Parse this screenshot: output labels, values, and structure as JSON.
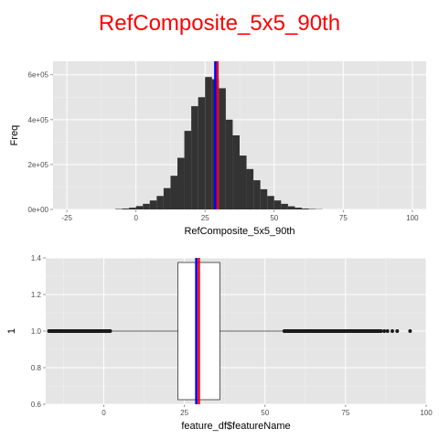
{
  "title": "RefComposite_5x5_90th",
  "colors": {
    "title": "#ff0000",
    "panel_bg": "#e5e5e5",
    "grid_major": "#ffffff",
    "grid_minor": "#f2f2f2",
    "bar_fill": "#333333",
    "mean_line": "#ff0000",
    "median_line": "#0000ff",
    "tick_text": "#4d4d4d"
  },
  "chart_data": [
    {
      "type": "bar",
      "subtype": "histogram",
      "xlabel": "RefComposite_5x5_90th",
      "ylabel": "Freq",
      "xlim": [
        -30,
        105
      ],
      "ylim": [
        0,
        660000
      ],
      "x_ticks": [
        -25,
        0,
        25,
        50,
        75,
        100
      ],
      "x_tick_labels": [
        "-25",
        "0",
        "25",
        "50",
        "75",
        "100"
      ],
      "y_ticks": [
        0,
        200000,
        400000,
        600000
      ],
      "y_tick_labels": [
        "0e+00",
        "2e+05",
        "4e+05",
        "6e+05"
      ],
      "bins": {
        "start": [
          -7.5,
          -5,
          -2.5,
          0,
          2.5,
          5,
          7.5,
          10,
          12.5,
          15,
          17.5,
          20,
          22.5,
          25,
          27.5,
          30,
          32.5,
          35,
          37.5,
          40,
          42.5,
          45,
          47.5,
          50,
          52.5,
          55,
          57.5,
          60,
          62.5,
          65
        ],
        "width": 2.5,
        "values": [
          2000,
          4000,
          8000,
          15000,
          25000,
          40000,
          60000,
          95000,
          150000,
          230000,
          350000,
          460000,
          500000,
          590000,
          580000,
          540000,
          400000,
          330000,
          240000,
          180000,
          130000,
          90000,
          60000,
          40000,
          25000,
          14000,
          8000,
          4000,
          2000,
          1000
        ]
      },
      "vlines": [
        {
          "x": 29.5,
          "color": "#ff0000"
        },
        {
          "x": 28.7,
          "color": "#0000ff"
        }
      ],
      "grid": true,
      "legend": "none"
    },
    {
      "type": "boxplot",
      "xlabel": "feature_df$featureName",
      "ylabel": "1",
      "xlim": [
        -18,
        100
      ],
      "ylim": [
        0.6,
        1.4
      ],
      "x_ticks": [
        0,
        25,
        50,
        75,
        100
      ],
      "x_tick_labels": [
        "0",
        "25",
        "50",
        "75",
        "100"
      ],
      "y_ticks": [
        0.6,
        0.8,
        1.0,
        1.2,
        1.4
      ],
      "y_tick_labels": [
        "0.6",
        "0.8",
        "1.0",
        "1.2",
        "1.4"
      ],
      "box": {
        "q1": 23,
        "median": 28.5,
        "q3": 36,
        "whisker_low": 2,
        "whisker_high": 56,
        "y_center": 1.0,
        "y_low": 0.625,
        "y_high": 1.375
      },
      "outliers_low_range": [
        -17,
        2
      ],
      "outliers_high_range": [
        56,
        86
      ],
      "outliers_extra": [
        87,
        88,
        89.5,
        91,
        95
      ],
      "vlines": [
        {
          "x": 29.5,
          "color": "#ff0000"
        },
        {
          "x": 28.7,
          "color": "#0000ff"
        }
      ],
      "grid": true,
      "legend": "none"
    }
  ]
}
